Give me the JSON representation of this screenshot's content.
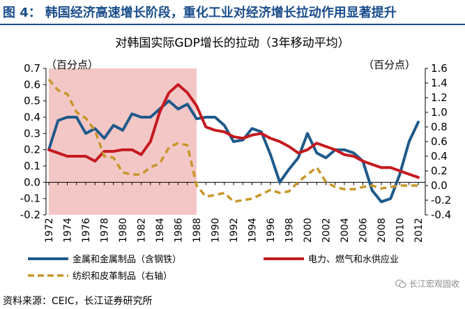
{
  "figure": {
    "label": "图 4：",
    "title": "韩国经济高速增长阶段，重化工业对经济增长拉动作用显著提升"
  },
  "source": "资料来源：CEIC，长江证券研究所",
  "watermark": "长江宏观固收",
  "colors": {
    "header": "#1a4e8c",
    "metals": "#1f5a8a",
    "power": "#c41a1f",
    "textile": "#c8962a",
    "shade": "#f4c7c7"
  },
  "chart_data": {
    "type": "line",
    "title": "对韩国实际GDP增长的拉动（3年移动平均）",
    "left_unit": "（百分点）",
    "right_unit": "（百分点）",
    "x": [
      1972,
      1973,
      1974,
      1975,
      1976,
      1977,
      1978,
      1979,
      1980,
      1981,
      1982,
      1983,
      1984,
      1985,
      1986,
      1987,
      1988,
      1989,
      1990,
      1991,
      1992,
      1993,
      1994,
      1995,
      1996,
      1997,
      1998,
      1999,
      2000,
      2001,
      2002,
      2003,
      2004,
      2005,
      2006,
      2007,
      2008,
      2009,
      2010,
      2011,
      2012
    ],
    "x_tick_labels": [
      "1972",
      "1974",
      "1976",
      "1978",
      "1980",
      "1982",
      "1984",
      "1986",
      "1988",
      "1990",
      "1992",
      "1994",
      "1996",
      "1998",
      "2000",
      "2002",
      "2004",
      "2006",
      "2008",
      "2010",
      "2012"
    ],
    "left_axis": {
      "ylim": [
        -0.2,
        0.7
      ],
      "ticks": [
        "-0.2",
        "-0.1",
        "0.0",
        "0.1",
        "0.2",
        "0.3",
        "0.4",
        "0.5",
        "0.6",
        "0.7"
      ]
    },
    "right_axis": {
      "ylim": [
        -0.4,
        1.6
      ],
      "ticks": [
        "-0.4",
        "-0.2",
        "0.0",
        "0.2",
        "0.4",
        "0.6",
        "0.8",
        "1.0",
        "1.2",
        "1.4",
        "1.6"
      ]
    },
    "shaded_period": [
      1972,
      1988
    ],
    "series": [
      {
        "name": "金属和金属制品（含钢铁）",
        "axis": "left",
        "style": "solid",
        "color": "#1f5a8a",
        "values": [
          0.2,
          0.38,
          0.4,
          0.4,
          0.3,
          0.33,
          0.27,
          0.35,
          0.32,
          0.42,
          0.4,
          0.4,
          0.45,
          0.5,
          0.45,
          0.48,
          0.39,
          0.4,
          0.4,
          0.35,
          0.25,
          0.26,
          0.33,
          0.31,
          0.17,
          0.0,
          0.08,
          0.15,
          0.3,
          0.18,
          0.15,
          0.2,
          0.2,
          0.18,
          0.13,
          -0.05,
          -0.12,
          -0.1,
          0.05,
          0.25,
          0.37
        ]
      },
      {
        "name": "电力、燃气和水供应业",
        "axis": "left",
        "style": "solid",
        "color": "#c41a1f",
        "values": [
          0.2,
          0.18,
          0.16,
          0.16,
          0.16,
          0.13,
          0.19,
          0.19,
          0.2,
          0.2,
          0.17,
          0.25,
          0.43,
          0.55,
          0.6,
          0.55,
          0.47,
          0.34,
          0.32,
          0.31,
          0.28,
          0.27,
          0.29,
          0.3,
          0.27,
          0.25,
          0.22,
          0.18,
          0.2,
          0.24,
          0.22,
          0.2,
          0.17,
          0.16,
          0.13,
          0.11,
          0.09,
          0.09,
          0.07,
          0.05,
          0.03
        ]
      },
      {
        "name": "纺织和皮革制品（右轴）",
        "axis": "right",
        "style": "dashed",
        "color": "#c8962a",
        "values": [
          1.45,
          1.3,
          1.25,
          1.0,
          0.92,
          0.75,
          0.4,
          0.38,
          0.18,
          0.15,
          0.15,
          0.25,
          0.3,
          0.52,
          0.58,
          0.55,
          0.0,
          -0.15,
          -0.13,
          -0.1,
          -0.22,
          -0.2,
          -0.18,
          -0.12,
          -0.06,
          -0.1,
          -0.08,
          0.05,
          0.15,
          0.25,
          0.05,
          -0.02,
          -0.05,
          -0.05,
          -0.02,
          0.0,
          -0.04,
          -0.02,
          0.0,
          0.0,
          0.0
        ]
      }
    ]
  }
}
